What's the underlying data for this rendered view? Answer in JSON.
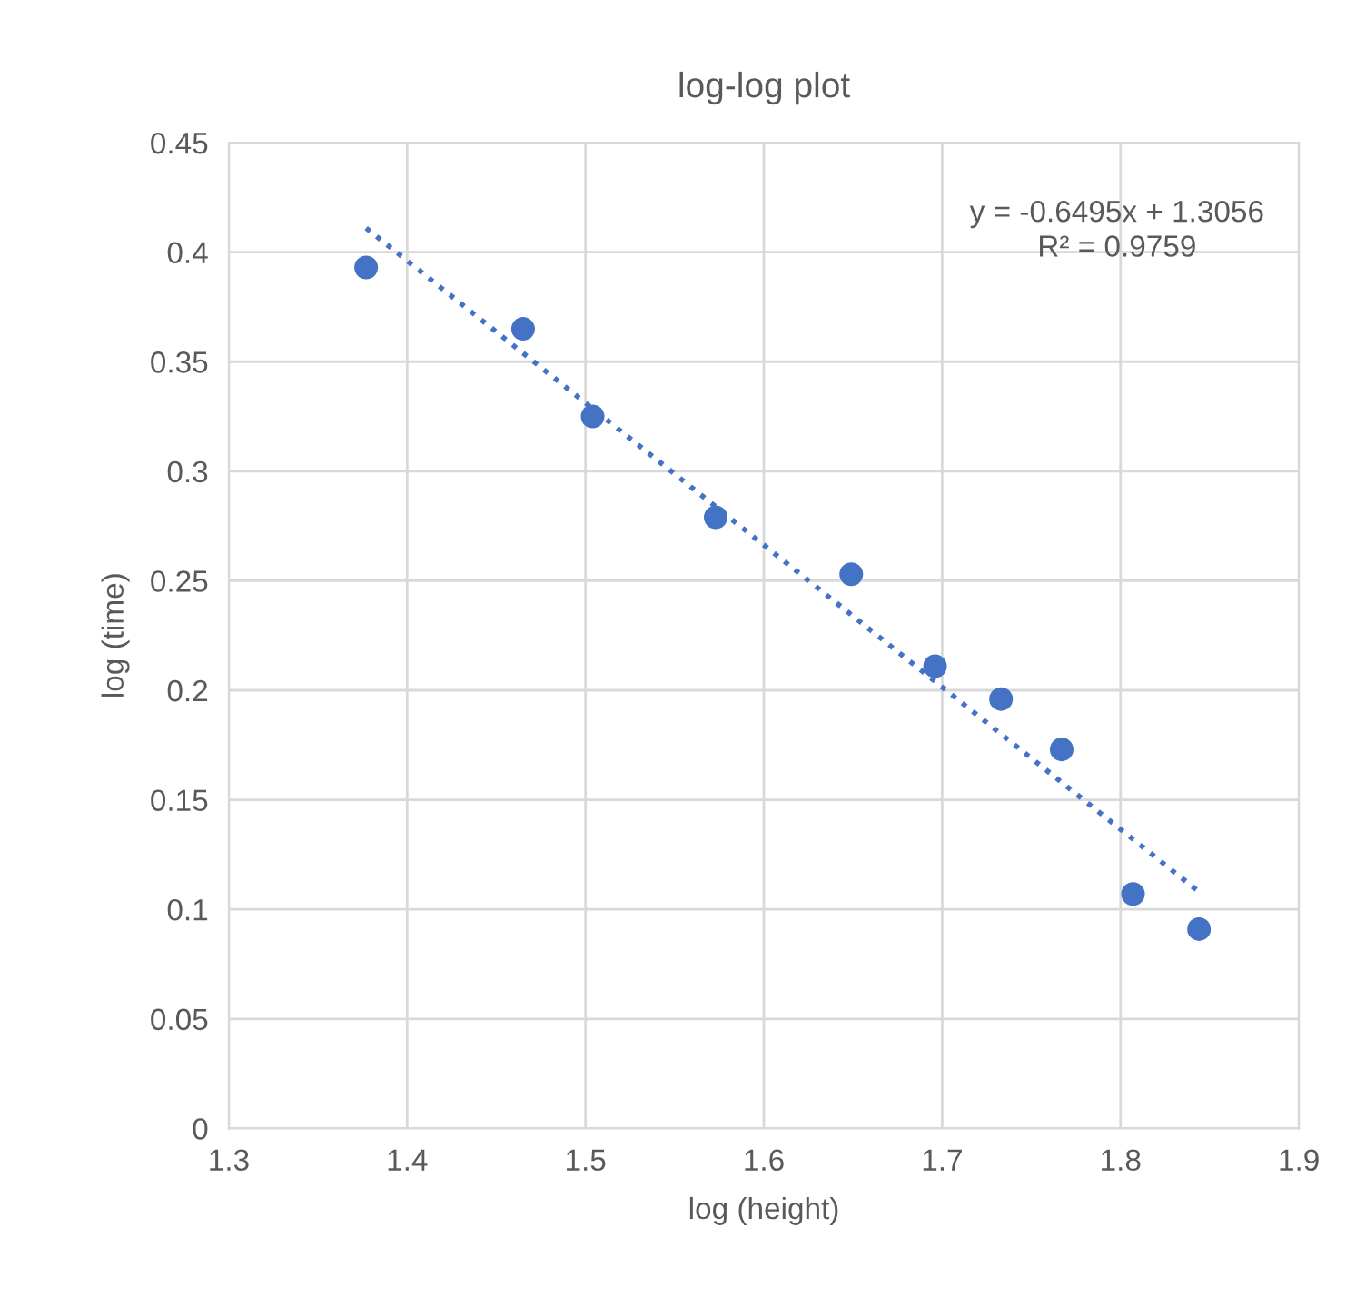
{
  "chart_data": {
    "type": "scatter",
    "title": "log-log plot",
    "xlabel": "log (height)",
    "ylabel": "log (time)",
    "series": [
      {
        "color": "#4472c4",
        "marker": "circle",
        "x": [
          1.377,
          1.465,
          1.504,
          1.573,
          1.649,
          1.696,
          1.733,
          1.767,
          1.807,
          1.844
        ],
        "values": [
          0.393,
          0.365,
          0.325,
          0.279,
          0.253,
          0.211,
          0.196,
          0.173,
          0.107,
          0.091
        ]
      },
      {
        "type": "line",
        "color": "#4472c4",
        "line_style": "dotted",
        "marker": "none",
        "x": [
          1.377,
          1.844
        ],
        "values": [
          0.411,
          0.108
        ]
      }
    ],
    "annotations": [
      "y = -0.6495x + 1.3056\nR² = 0.9759"
    ],
    "xlim": [
      1.3,
      1.9
    ],
    "xticks": [
      1.3,
      1.4,
      1.5,
      1.6,
      1.7,
      1.8,
      1.9
    ],
    "ylim": [
      0,
      0.45
    ],
    "yticks": [
      0,
      0.05,
      0.1,
      0.15,
      0.2,
      0.25,
      0.3,
      0.35,
      0.4,
      0.45
    ],
    "grid": true,
    "legend": false
  }
}
